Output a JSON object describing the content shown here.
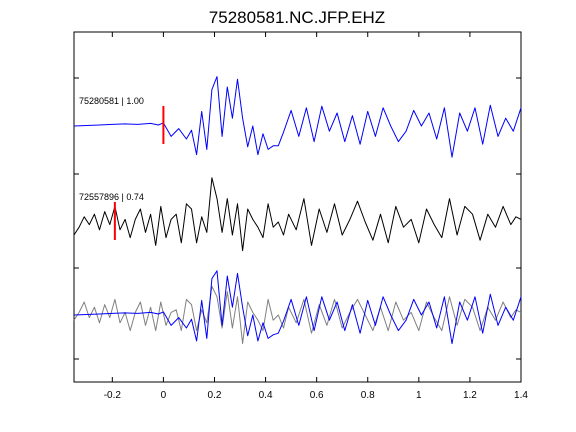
{
  "chart_data": {
    "type": "line",
    "title": "75280581.NC.JFP.EHZ",
    "xlabel": "",
    "ylabel": "",
    "xlim": [
      -0.35,
      1.4
    ],
    "xticks": [
      -0.2,
      0,
      0.2,
      0.4,
      0.6,
      0.8,
      1,
      1.2,
      1.4
    ],
    "xtick_labels": [
      "-0.2",
      "0",
      "0.2",
      "0.4",
      "0.6",
      "0.8",
      "1",
      "1.2",
      "1.4"
    ],
    "grid": false,
    "panels": [
      {
        "label": "75280581 | 1.00",
        "pick_time": 0.0,
        "series": [
          {
            "color": "#0000ff",
            "x": [
              -0.35,
              -0.3,
              -0.25,
              -0.2,
              -0.15,
              -0.1,
              -0.05,
              -0.02,
              0.0,
              0.03,
              0.06,
              0.09,
              0.11,
              0.13,
              0.15,
              0.17,
              0.19,
              0.21,
              0.23,
              0.25,
              0.27,
              0.29,
              0.31,
              0.33,
              0.35,
              0.37,
              0.39,
              0.41,
              0.43,
              0.45,
              0.47,
              0.5,
              0.53,
              0.56,
              0.59,
              0.62,
              0.65,
              0.68,
              0.71,
              0.74,
              0.77,
              0.8,
              0.83,
              0.86,
              0.89,
              0.92,
              0.95,
              0.98,
              1.01,
              1.04,
              1.07,
              1.1,
              1.13,
              1.16,
              1.19,
              1.22,
              1.25,
              1.28,
              1.31,
              1.34,
              1.37,
              1.4
            ],
            "y": [
              0.0,
              0.01,
              0.02,
              0.03,
              0.04,
              0.03,
              0.05,
              0.02,
              0.06,
              -0.2,
              -0.05,
              -0.25,
              -0.08,
              -0.55,
              0.28,
              -0.45,
              0.7,
              0.95,
              -0.2,
              0.75,
              0.15,
              0.9,
              0.15,
              -0.4,
              0.0,
              -0.55,
              -0.15,
              -0.45,
              -0.38,
              -0.38,
              -0.12,
              0.3,
              -0.2,
              0.35,
              -0.3,
              0.38,
              -0.1,
              0.25,
              -0.3,
              0.2,
              -0.35,
              0.28,
              -0.2,
              0.35,
              0.0,
              -0.3,
              -0.1,
              0.3,
              0.0,
              0.25,
              -0.25,
              0.35,
              -0.6,
              0.25,
              -0.1,
              0.35,
              -0.35,
              0.4,
              -0.2,
              0.15,
              -0.1,
              0.35
            ]
          }
        ]
      },
      {
        "label": "72557896 | 0.74",
        "pick_time": -0.19,
        "series": [
          {
            "color": "#000000",
            "x": [
              -0.35,
              -0.33,
              -0.31,
              -0.29,
              -0.27,
              -0.25,
              -0.23,
              -0.21,
              -0.19,
              -0.17,
              -0.15,
              -0.13,
              -0.11,
              -0.09,
              -0.07,
              -0.05,
              -0.03,
              -0.01,
              0.01,
              0.03,
              0.05,
              0.07,
              0.09,
              0.11,
              0.13,
              0.15,
              0.17,
              0.19,
              0.21,
              0.23,
              0.25,
              0.27,
              0.29,
              0.31,
              0.33,
              0.35,
              0.37,
              0.39,
              0.41,
              0.43,
              0.45,
              0.47,
              0.49,
              0.52,
              0.55,
              0.58,
              0.61,
              0.64,
              0.67,
              0.7,
              0.73,
              0.76,
              0.79,
              0.82,
              0.85,
              0.88,
              0.91,
              0.94,
              0.97,
              1.0,
              1.03,
              1.06,
              1.09,
              1.12,
              1.15,
              1.18,
              1.21,
              1.24,
              1.27,
              1.3,
              1.33,
              1.36,
              1.38,
              1.4
            ],
            "y": [
              -0.25,
              -0.1,
              0.1,
              -0.05,
              0.15,
              -0.15,
              0.2,
              -0.05,
              0.3,
              -0.15,
              0.05,
              -0.3,
              0.05,
              0.25,
              -0.2,
              0.15,
              -0.45,
              0.3,
              -0.3,
              0.05,
              0.15,
              -0.4,
              0.35,
              0.25,
              -0.4,
              0.1,
              -0.2,
              0.85,
              0.45,
              -0.2,
              0.45,
              -0.25,
              0.35,
              -0.55,
              0.25,
              0.05,
              -0.1,
              -0.3,
              0.35,
              -0.1,
              0.0,
              -0.25,
              0.15,
              -0.15,
              0.45,
              -0.45,
              0.25,
              -0.2,
              0.35,
              -0.25,
              0.05,
              0.4,
              0.0,
              -0.35,
              0.15,
              -0.4,
              0.3,
              -0.1,
              0.05,
              -0.4,
              0.25,
              -0.05,
              -0.3,
              0.45,
              -0.25,
              0.3,
              0.15,
              -0.35,
              0.15,
              -0.1,
              0.3,
              -0.05,
              0.1,
              0.05
            ]
          }
        ]
      },
      {
        "label": "",
        "pick_time": null,
        "series": [
          {
            "color": "#808080",
            "x": [
              -0.35,
              -0.33,
              -0.31,
              -0.29,
              -0.27,
              -0.25,
              -0.23,
              -0.21,
              -0.19,
              -0.17,
              -0.15,
              -0.13,
              -0.11,
              -0.09,
              -0.07,
              -0.05,
              -0.03,
              -0.01,
              0.01,
              0.03,
              0.05,
              0.07,
              0.09,
              0.11,
              0.13,
              0.15,
              0.17,
              0.19,
              0.21,
              0.23,
              0.25,
              0.27,
              0.29,
              0.31,
              0.33,
              0.35,
              0.37,
              0.39,
              0.41,
              0.43,
              0.45,
              0.47,
              0.49,
              0.52,
              0.55,
              0.58,
              0.61,
              0.64,
              0.67,
              0.7,
              0.73,
              0.76,
              0.79,
              0.82,
              0.85,
              0.88,
              0.91,
              0.94,
              0.97,
              1.0,
              1.03,
              1.06,
              1.09,
              1.12,
              1.15,
              1.18,
              1.21,
              1.24,
              1.27,
              1.3,
              1.33,
              1.36,
              1.38,
              1.4
            ],
            "y": [
              -0.1,
              0.05,
              0.25,
              -0.05,
              0.15,
              -0.15,
              0.2,
              -0.05,
              0.3,
              -0.15,
              0.05,
              -0.3,
              0.05,
              0.25,
              -0.2,
              0.15,
              -0.3,
              0.25,
              -0.2,
              0.05,
              0.1,
              -0.3,
              0.3,
              0.2,
              -0.3,
              0.1,
              -0.15,
              0.55,
              0.35,
              -0.25,
              0.45,
              -0.25,
              0.35,
              -0.55,
              0.25,
              0.05,
              -0.1,
              -0.3,
              0.3,
              -0.1,
              0.0,
              -0.25,
              0.15,
              -0.15,
              0.3,
              -0.35,
              0.2,
              -0.2,
              0.3,
              -0.25,
              0.05,
              0.3,
              0.0,
              -0.3,
              0.15,
              -0.3,
              0.25,
              -0.1,
              0.05,
              -0.3,
              0.25,
              -0.05,
              -0.3,
              0.35,
              -0.2,
              0.3,
              0.15,
              -0.3,
              0.15,
              -0.1,
              0.25,
              -0.05,
              0.1,
              0.05
            ]
          },
          {
            "color": "#0000ff",
            "x": [
              -0.35,
              -0.3,
              -0.25,
              -0.2,
              -0.15,
              -0.1,
              -0.05,
              -0.02,
              0.0,
              0.03,
              0.06,
              0.09,
              0.11,
              0.13,
              0.15,
              0.17,
              0.19,
              0.21,
              0.23,
              0.25,
              0.27,
              0.29,
              0.31,
              0.33,
              0.35,
              0.37,
              0.39,
              0.41,
              0.43,
              0.45,
              0.47,
              0.5,
              0.53,
              0.56,
              0.59,
              0.62,
              0.65,
              0.68,
              0.71,
              0.74,
              0.77,
              0.8,
              0.83,
              0.86,
              0.89,
              0.92,
              0.95,
              0.98,
              1.01,
              1.04,
              1.07,
              1.1,
              1.13,
              1.16,
              1.19,
              1.22,
              1.25,
              1.28,
              1.31,
              1.34,
              1.37,
              1.4
            ],
            "y": [
              0.0,
              0.01,
              0.02,
              0.03,
              0.04,
              0.03,
              0.05,
              0.02,
              0.06,
              -0.2,
              -0.05,
              -0.25,
              -0.08,
              -0.5,
              0.28,
              -0.45,
              0.7,
              0.85,
              -0.2,
              0.75,
              0.15,
              0.8,
              0.15,
              -0.4,
              0.0,
              -0.5,
              -0.15,
              -0.45,
              -0.38,
              -0.35,
              -0.12,
              0.3,
              -0.2,
              0.35,
              -0.3,
              0.35,
              -0.1,
              0.25,
              -0.3,
              0.2,
              -0.35,
              0.28,
              -0.2,
              0.35,
              0.0,
              -0.3,
              -0.1,
              0.3,
              0.0,
              0.25,
              -0.25,
              0.35,
              -0.55,
              0.25,
              -0.1,
              0.35,
              -0.35,
              0.4,
              -0.2,
              0.15,
              -0.1,
              0.35
            ]
          }
        ]
      }
    ]
  }
}
